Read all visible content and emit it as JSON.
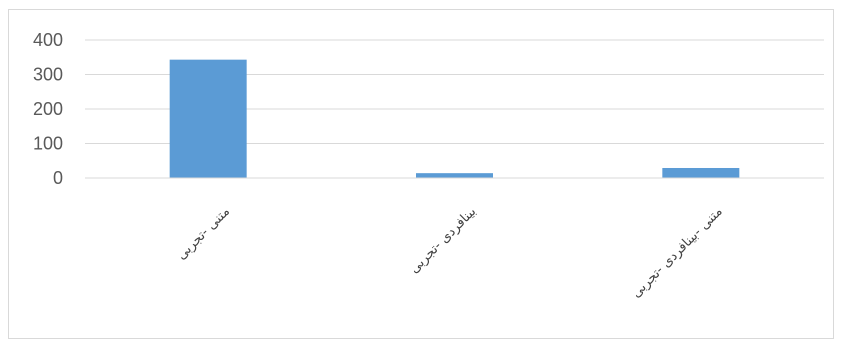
{
  "chart_data": {
    "type": "bar",
    "title": "",
    "xlabel": "",
    "ylabel": "",
    "categories": [
      "متنی -تجربی",
      "بینافردی -تجربی",
      "متنی -بینافردی -تجربی"
    ],
    "values": [
      343,
      14,
      29
    ],
    "ylim": [
      0,
      400
    ],
    "yticks": [
      0,
      100,
      200,
      300,
      400
    ],
    "grid": true,
    "legend": "none",
    "bar_color": "#5b9bd5",
    "grid_color": "#d9d9d9"
  }
}
